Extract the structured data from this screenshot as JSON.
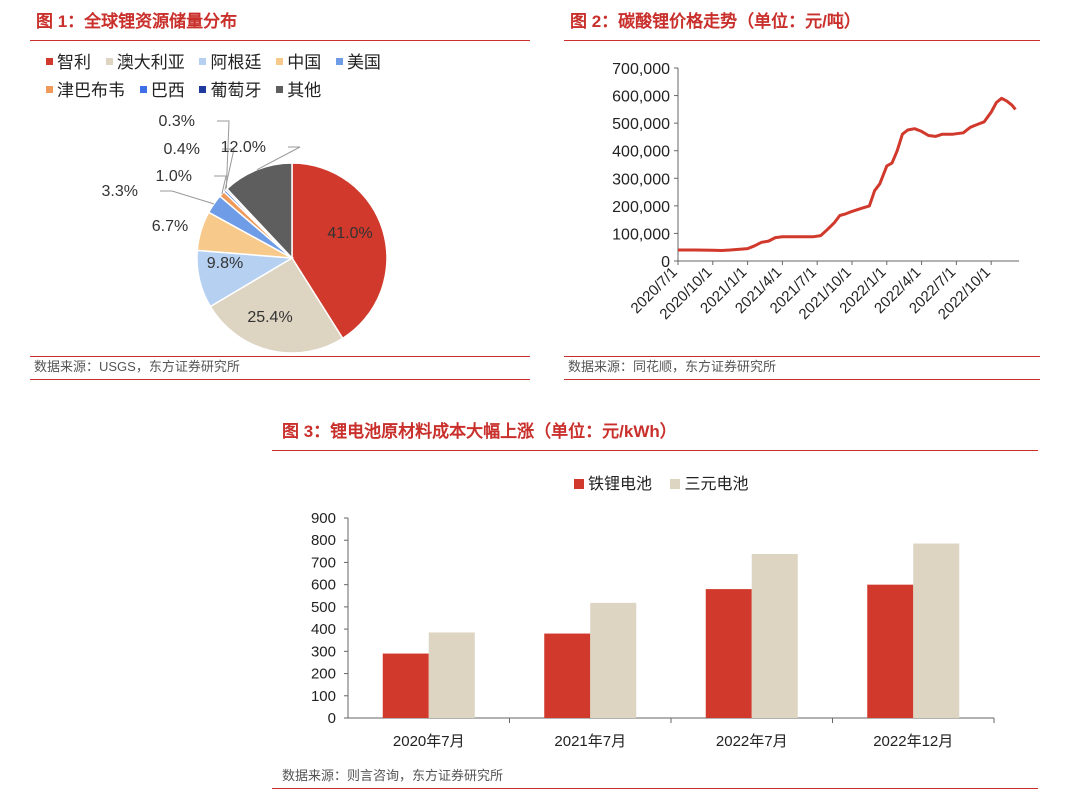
{
  "panel1": {
    "title": "图 1：全球锂资源储量分布",
    "source": "数据来源：USGS，东方证券研究所",
    "chart_data": {
      "type": "pie",
      "title": "全球锂资源储量分布",
      "slices": [
        {
          "name": "智利",
          "value": 41.0,
          "label": "41.0%",
          "color": "#d0392b"
        },
        {
          "name": "澳大利亚",
          "value": 25.4,
          "label": "25.4%",
          "color": "#ddd4c1"
        },
        {
          "name": "阿根廷",
          "value": 9.8,
          "label": "9.8%",
          "color": "#b6d0f2"
        },
        {
          "name": "中国",
          "value": 6.7,
          "label": "6.7%",
          "color": "#f7c98b"
        },
        {
          "name": "美国",
          "value": 3.3,
          "label": "3.3%",
          "color": "#6f9ce6"
        },
        {
          "name": "津巴布韦",
          "value": 1.0,
          "label": "1.0%",
          "color": "#ef9a5a"
        },
        {
          "name": "巴西",
          "value": 0.4,
          "label": "0.4%",
          "color": "#3f6fe6"
        },
        {
          "name": "葡萄牙",
          "value": 0.3,
          "label": "0.3%",
          "color": "#1f3a9e"
        },
        {
          "name": "其他",
          "value": 12.0,
          "label": "12.0%",
          "color": "#5e5e5e"
        }
      ]
    }
  },
  "panel2": {
    "title": "图 2：碳酸锂价格走势（单位：元/吨）",
    "source": "数据来源：同花顺，东方证券研究所",
    "chart_data": {
      "type": "line",
      "title": "碳酸锂价格走势（单位：元/吨）",
      "ylim": [
        0,
        700000
      ],
      "yticks": [
        "0",
        "100,000",
        "200,000",
        "300,000",
        "400,000",
        "500,000",
        "600,000",
        "700,000"
      ],
      "xticks": [
        "2020/7/1",
        "2020/10/1",
        "2021/1/1",
        "2021/4/1",
        "2021/7/1",
        "2021/10/1",
        "2022/1/1",
        "2022/4/1",
        "2022/7/1",
        "2022/10/1"
      ],
      "series": [
        {
          "name": "碳酸锂价格",
          "color": "#d0392b",
          "points": [
            [
              0,
              40000
            ],
            [
              1,
              40000
            ],
            [
              2,
              39000
            ],
            [
              2.5,
              38000
            ],
            [
              3,
              40000
            ],
            [
              4,
              45000
            ],
            [
              4.4,
              55000
            ],
            [
              4.8,
              68000
            ],
            [
              5.2,
              72000
            ],
            [
              5.6,
              85000
            ],
            [
              6,
              88000
            ],
            [
              7,
              88000
            ],
            [
              7.8,
              88000
            ],
            [
              8.2,
              92000
            ],
            [
              8.6,
              115000
            ],
            [
              9,
              140000
            ],
            [
              9.3,
              165000
            ],
            [
              9.6,
              170000
            ],
            [
              10,
              180000
            ],
            [
              10.5,
              190000
            ],
            [
              11,
              200000
            ],
            [
              11.3,
              255000
            ],
            [
              11.6,
              280000
            ],
            [
              12,
              345000
            ],
            [
              12.3,
              355000
            ],
            [
              12.6,
              400000
            ],
            [
              12.9,
              460000
            ],
            [
              13.2,
              475000
            ],
            [
              13.6,
              480000
            ],
            [
              14,
              470000
            ],
            [
              14.4,
              455000
            ],
            [
              14.8,
              452000
            ],
            [
              15.2,
              460000
            ],
            [
              15.8,
              460000
            ],
            [
              16.4,
              465000
            ],
            [
              16.8,
              485000
            ],
            [
              17.2,
              495000
            ],
            [
              17.6,
              505000
            ],
            [
              18,
              540000
            ],
            [
              18.3,
              575000
            ],
            [
              18.6,
              590000
            ],
            [
              18.9,
              580000
            ],
            [
              19.2,
              565000
            ],
            [
              19.4,
              550000
            ]
          ]
        }
      ]
    }
  },
  "panel3": {
    "title": "图 3：锂电池原材料成本大幅上涨（单位：元/kWh）",
    "source": "数据来源：则言咨询，东方证券研究所",
    "chart_data": {
      "type": "bar",
      "title": "锂电池原材料成本大幅上涨（单位：元/kWh）",
      "categories": [
        "2020年7月",
        "2021年7月",
        "2022年7月",
        "2022年12月"
      ],
      "ylim": [
        0,
        900
      ],
      "yticks": [
        "0",
        "100",
        "200",
        "300",
        "400",
        "500",
        "600",
        "700",
        "800",
        "900"
      ],
      "series": [
        {
          "name": "铁锂电池",
          "color": "#d0392b",
          "values": [
            290,
            380,
            580,
            600
          ]
        },
        {
          "name": "三元电池",
          "color": "#ddd4c1",
          "values": [
            385,
            518,
            738,
            785
          ]
        }
      ]
    }
  }
}
